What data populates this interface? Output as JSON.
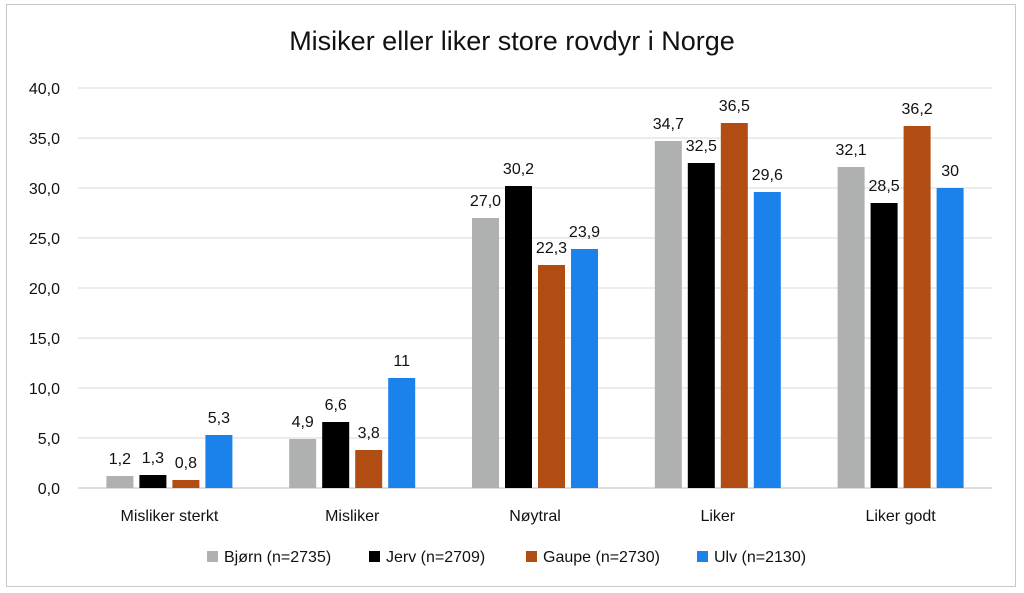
{
  "chart_data": {
    "type": "bar",
    "title": "Misiker eller liker store rovdyr i Norge",
    "xlabel": "",
    "ylabel": "",
    "ylim": [
      0,
      40
    ],
    "yticks": [
      "0,0",
      "5,0",
      "10,0",
      "15,0",
      "20,0",
      "25,0",
      "30,0",
      "35,0",
      "40,0"
    ],
    "ytick_values": [
      0,
      5,
      10,
      15,
      20,
      25,
      30,
      35,
      40
    ],
    "grid": true,
    "legend_position": "bottom",
    "categories": [
      "Misliker sterkt",
      "Misliker",
      "Nøytral",
      "Liker",
      "Liker godt"
    ],
    "series": [
      {
        "name": "Bjørn (n=2735)",
        "color": "#afb1b0",
        "values": [
          1.2,
          4.9,
          27.0,
          34.7,
          32.1
        ],
        "labels": [
          "1,2",
          "4,9",
          "27,0",
          "34,7",
          "32,1"
        ]
      },
      {
        "name": "Jerv (n=2709)",
        "color": "#000000",
        "values": [
          1.3,
          6.6,
          30.2,
          32.5,
          28.5
        ],
        "labels": [
          "1,3",
          "6,6",
          "30,2",
          "32,5",
          "28,5"
        ]
      },
      {
        "name": "Gaupe (n=2730)",
        "color": "#b14d12",
        "values": [
          0.8,
          3.8,
          22.3,
          36.5,
          36.2
        ],
        "labels": [
          "0,8",
          "3,8",
          "22,3",
          "36,5",
          "36,2"
        ]
      },
      {
        "name": "Ulv (n=2130)",
        "color": "#1b82ec",
        "values": [
          5.3,
          11,
          23.9,
          29.6,
          30
        ],
        "labels": [
          "5,3",
          "11",
          "23,9",
          "29,6",
          "30"
        ]
      }
    ]
  }
}
